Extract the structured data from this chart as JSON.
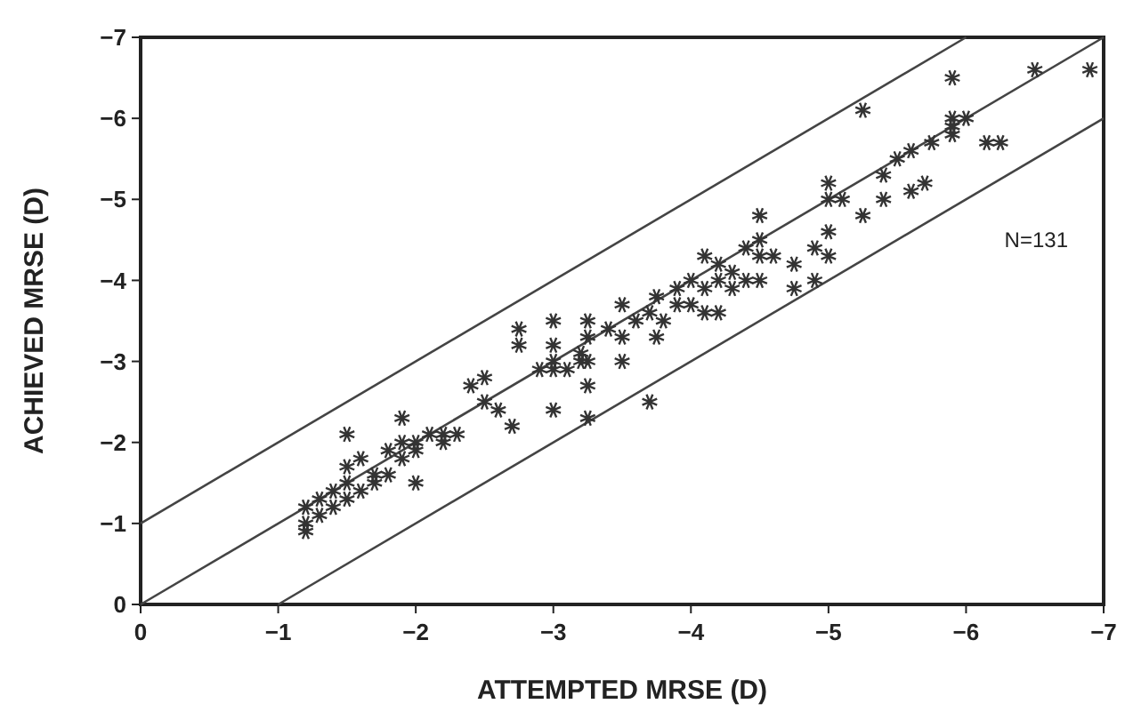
{
  "chart_data": {
    "type": "scatter",
    "xlabel": "ATTEMPTED MRSE (D)",
    "ylabel": "ACHIEVED MRSE (D)",
    "xlim": [
      0,
      -7
    ],
    "ylim": [
      0,
      -7
    ],
    "xticks": [
      0,
      -1,
      -2,
      -3,
      -4,
      -5,
      -6,
      -7
    ],
    "yticks": [
      0,
      -1,
      -2,
      -3,
      -4,
      -5,
      -6,
      -7
    ],
    "grid": false,
    "marker": "cross",
    "annotations": [
      "N=131"
    ],
    "series": [
      {
        "type": "line",
        "color": "#444444",
        "marker": "none",
        "line_style": "solid",
        "x": [
          0,
          -6
        ],
        "values": [
          -1,
          -7
        ]
      },
      {
        "type": "line",
        "color": "#444444",
        "marker": "none",
        "line_style": "solid",
        "x": [
          0,
          -7
        ],
        "values": [
          0,
          -7
        ]
      },
      {
        "type": "line",
        "color": "#444444",
        "marker": "none",
        "line_style": "solid",
        "x": [
          -1,
          -7
        ],
        "values": [
          0,
          -6
        ]
      },
      {
        "color": "#333333",
        "x": [
          -1.2,
          -1.2,
          -1.2,
          -1.3,
          -1.3,
          -1.4,
          -1.4,
          -1.5,
          -1.5,
          -1.5,
          -1.5,
          -1.6,
          -1.6,
          -1.7,
          -1.7,
          -1.8,
          -1.8,
          -1.9,
          -1.9,
          -1.9,
          -2,
          -2,
          -2,
          -2.1,
          -2.2,
          -2.2,
          -2.3,
          -2.4,
          -2.5,
          -2.5,
          -2.6,
          -2.7,
          -2.75,
          -2.75,
          -2.9,
          -3,
          -3,
          -3,
          -3,
          -3,
          -3.1,
          -3.2,
          -3.2,
          -3.25,
          -3.25,
          -3.25,
          -3.25,
          -3.25,
          -3.4,
          -3.5,
          -3.5,
          -3.5,
          -3.6,
          -3.7,
          -3.7,
          -3.75,
          -3.75,
          -3.8,
          -3.9,
          -3.9,
          -4,
          -4,
          -4.1,
          -4.1,
          -4.1,
          -4.2,
          -4.2,
          -4.2,
          -4.3,
          -4.3,
          -4.4,
          -4.4,
          -4.5,
          -4.5,
          -4.5,
          -4.5,
          -4.6,
          -4.75,
          -4.75,
          -4.9,
          -4.9,
          -5,
          -5,
          -5,
          -5,
          -5.1,
          -5.25,
          -5.25,
          -5.4,
          -5.4,
          -5.5,
          -5.6,
          -5.6,
          -5.7,
          -5.75,
          -5.9,
          -5.9,
          -5.9,
          -5.9,
          -6,
          -6.15,
          -6.25,
          -6.5,
          -6.9
        ],
        "values": [
          -0.9,
          -1,
          -1.2,
          -1.1,
          -1.3,
          -1.4,
          -1.2,
          -1.5,
          -1.7,
          -2.1,
          -1.3,
          -1.4,
          -1.8,
          -1.5,
          -1.6,
          -1.6,
          -1.9,
          -2,
          -2.3,
          -1.8,
          -1.5,
          -1.9,
          -2,
          -2.1,
          -2.1,
          -2,
          -2.1,
          -2.7,
          -2.5,
          -2.8,
          -2.4,
          -2.2,
          -3.4,
          -3.2,
          -2.9,
          -3,
          -2.9,
          -3.2,
          -2.4,
          -3.5,
          -2.9,
          -3,
          -3.1,
          -3.5,
          -3.3,
          -3,
          -2.7,
          -2.3,
          -3.4,
          -3.7,
          -3.3,
          -3,
          -3.5,
          -3.6,
          -2.5,
          -3.8,
          -3.3,
          -3.5,
          -3.9,
          -3.7,
          -4,
          -3.7,
          -4.3,
          -3.9,
          -3.6,
          -4.2,
          -3.6,
          -4,
          -4.1,
          -3.9,
          -4.4,
          -4,
          -4.8,
          -4.5,
          -4.3,
          -4,
          -4.3,
          -3.9,
          -4.2,
          -4.4,
          -4,
          -5.2,
          -5,
          -4.6,
          -4.3,
          -5,
          -6.1,
          -4.8,
          -5.3,
          -5,
          -5.5,
          -5.6,
          -5.1,
          -5.2,
          -5.7,
          -6.5,
          -5.8,
          -6,
          -5.9,
          -6,
          -5.7,
          -5.7,
          -6.6,
          -6.6
        ]
      }
    ]
  }
}
